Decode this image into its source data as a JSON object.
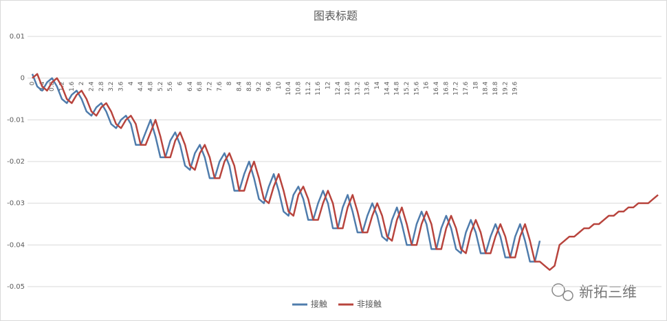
{
  "chart_data": {
    "type": "line",
    "title": "图表标题",
    "categories": [
      "0",
      null,
      "0.4",
      null,
      "0.8",
      null,
      "1.2",
      null,
      "1.6",
      null,
      "2",
      null,
      "2.4",
      null,
      "2.8",
      null,
      "3.2",
      null,
      "3.6",
      null,
      "4",
      null,
      "4.4",
      null,
      "4.8",
      null,
      "5.2",
      null,
      "5.6",
      null,
      "6",
      null,
      "6.4",
      null,
      "6.8",
      null,
      "7.2",
      null,
      "7.6",
      null,
      "8",
      null,
      "8.4",
      null,
      "8.8",
      null,
      "9.2",
      null,
      "9.6",
      null,
      "10",
      null,
      "10.4",
      null,
      "10.8",
      null,
      "11.2",
      null,
      "11.6",
      null,
      "12",
      null,
      "12.4",
      null,
      "12.8",
      null,
      "13.2",
      null,
      "13.6",
      null,
      "14",
      null,
      "14.4",
      null,
      "14.8",
      null,
      "15.2",
      null,
      "15.6",
      null,
      "16",
      null,
      "16.4",
      null,
      "16.8",
      null,
      "17.2",
      null,
      "17.6",
      null,
      "18",
      null,
      "18.4",
      null,
      "18.8",
      null,
      "19.2",
      null,
      "19.6",
      null,
      null,
      null,
      null,
      null,
      null,
      null,
      null,
      null,
      null,
      null,
      null,
      null,
      null,
      null,
      null,
      null,
      null,
      null,
      null,
      null,
      null,
      null,
      null,
      null,
      null,
      null,
      null,
      null
    ],
    "series": [
      {
        "name": "接触",
        "color": "#4f7cac",
        "values": [
          0.001,
          -0.002,
          -0.003,
          -0.001,
          0.0,
          -0.002,
          -0.005,
          -0.006,
          -0.004,
          -0.003,
          -0.005,
          -0.008,
          -0.009,
          -0.007,
          -0.006,
          -0.008,
          -0.011,
          -0.012,
          -0.01,
          -0.009,
          -0.011,
          -0.016,
          -0.016,
          -0.013,
          -0.01,
          -0.014,
          -0.019,
          -0.019,
          -0.015,
          -0.013,
          -0.016,
          -0.021,
          -0.022,
          -0.018,
          -0.016,
          -0.019,
          -0.024,
          -0.024,
          -0.02,
          -0.018,
          -0.021,
          -0.027,
          -0.027,
          -0.023,
          -0.02,
          -0.024,
          -0.029,
          -0.03,
          -0.026,
          -0.023,
          -0.027,
          -0.032,
          -0.033,
          -0.028,
          -0.026,
          -0.029,
          -0.034,
          -0.034,
          -0.03,
          -0.027,
          -0.03,
          -0.036,
          -0.036,
          -0.031,
          -0.028,
          -0.032,
          -0.037,
          -0.037,
          -0.033,
          -0.03,
          -0.033,
          -0.038,
          -0.039,
          -0.034,
          -0.031,
          -0.035,
          -0.04,
          -0.04,
          -0.035,
          -0.032,
          -0.035,
          -0.041,
          -0.041,
          -0.036,
          -0.033,
          -0.036,
          -0.041,
          -0.042,
          -0.037,
          -0.034,
          -0.037,
          -0.042,
          -0.042,
          -0.038,
          -0.035,
          -0.038,
          -0.043,
          -0.043,
          -0.038,
          -0.035,
          -0.039,
          -0.044,
          -0.044,
          -0.039,
          null,
          null,
          null,
          null,
          null,
          null,
          null,
          null,
          null,
          null,
          null,
          null,
          null,
          null,
          null,
          null,
          null,
          null,
          null,
          null,
          null,
          null,
          null,
          null
        ]
      },
      {
        "name": "非接触",
        "color": "#b8443d",
        "values": [
          0,
          0.001,
          -0.002,
          -0.003,
          -0.001,
          0.0,
          -0.002,
          -0.005,
          -0.006,
          -0.004,
          -0.003,
          -0.005,
          -0.008,
          -0.009,
          -0.007,
          -0.006,
          -0.008,
          -0.011,
          -0.012,
          -0.01,
          -0.009,
          -0.011,
          -0.016,
          -0.016,
          -0.013,
          -0.01,
          -0.014,
          -0.019,
          -0.019,
          -0.015,
          -0.013,
          -0.016,
          -0.021,
          -0.022,
          -0.018,
          -0.016,
          -0.019,
          -0.024,
          -0.024,
          -0.02,
          -0.018,
          -0.021,
          -0.027,
          -0.027,
          -0.023,
          -0.02,
          -0.024,
          -0.029,
          -0.03,
          -0.026,
          -0.023,
          -0.027,
          -0.032,
          -0.033,
          -0.028,
          -0.026,
          -0.029,
          -0.034,
          -0.034,
          -0.03,
          -0.027,
          -0.03,
          -0.036,
          -0.036,
          -0.031,
          -0.028,
          -0.032,
          -0.037,
          -0.037,
          -0.033,
          -0.03,
          -0.033,
          -0.038,
          -0.039,
          -0.034,
          -0.031,
          -0.035,
          -0.04,
          -0.04,
          -0.035,
          -0.032,
          -0.035,
          -0.041,
          -0.041,
          -0.036,
          -0.033,
          -0.036,
          -0.041,
          -0.042,
          -0.037,
          -0.034,
          -0.037,
          -0.042,
          -0.042,
          -0.038,
          -0.035,
          -0.038,
          -0.043,
          -0.043,
          -0.038,
          -0.035,
          -0.039,
          -0.044,
          -0.044,
          -0.045,
          -0.046,
          -0.045,
          -0.04,
          -0.039,
          -0.038,
          -0.038,
          -0.037,
          -0.036,
          -0.036,
          -0.035,
          -0.035,
          -0.034,
          -0.033,
          -0.033,
          -0.032,
          -0.032,
          -0.031,
          -0.031,
          -0.03,
          -0.03,
          -0.03,
          -0.029,
          -0.028
        ]
      }
    ],
    "ylim": [
      -0.05,
      0.01
    ],
    "yticks": [
      -0.05,
      -0.04,
      -0.03,
      -0.02,
      -0.01,
      0,
      0.01
    ],
    "grid": true,
    "legend": "bottom"
  },
  "watermark": "新拓三维"
}
